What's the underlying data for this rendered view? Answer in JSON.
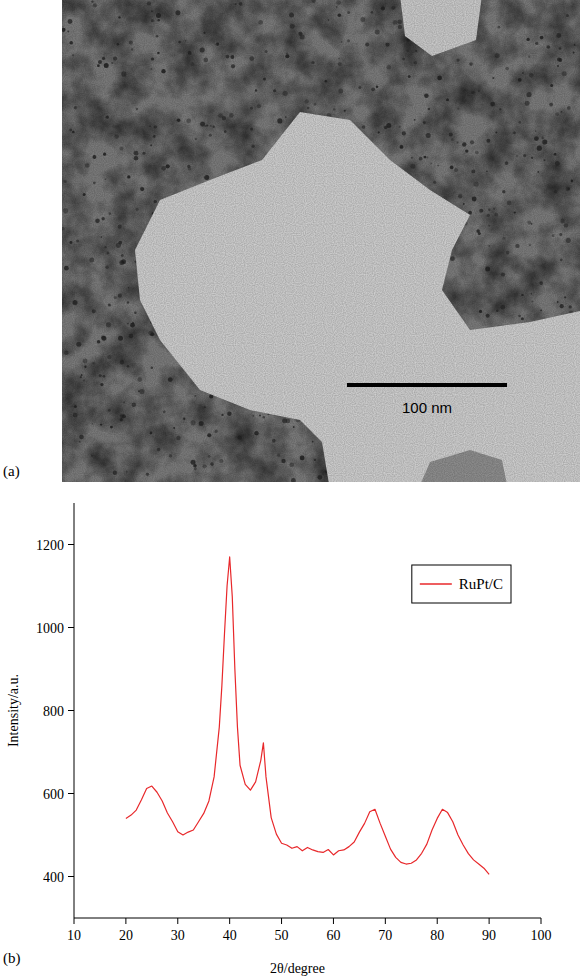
{
  "micrograph": {
    "panel_label": "(a)",
    "scale_bar": "100 nm"
  },
  "chart_data": {
    "type": "line",
    "panel_label": "(b)",
    "x_label": "2θ/degree",
    "y_label": "Intensity/a.u.",
    "xlim": [
      10,
      100
    ],
    "ylim": [
      300,
      1300
    ],
    "xticks": [
      10,
      20,
      30,
      40,
      50,
      60,
      70,
      80,
      90,
      100
    ],
    "yticks": [
      400,
      600,
      800,
      1000,
      1200
    ],
    "legend": "upper right",
    "x": [
      20,
      21,
      22,
      23,
      24,
      25,
      26,
      27,
      28,
      29,
      30,
      31,
      32,
      33,
      34,
      35,
      36,
      37,
      38,
      38.5,
      39,
      39.5,
      40,
      40.5,
      41,
      41.5,
      42,
      43,
      44,
      45,
      46,
      46.5,
      47,
      48,
      49,
      50,
      51,
      52,
      53,
      54,
      55,
      56,
      57,
      58,
      59,
      60,
      61,
      62,
      63,
      64,
      65,
      66,
      67,
      68,
      69,
      70,
      71,
      72,
      73,
      74,
      75,
      76,
      77,
      78,
      79,
      80,
      81,
      82,
      83,
      84,
      85,
      86,
      87,
      88,
      89,
      90
    ],
    "series": [
      {
        "name": "RuPt/C",
        "color": "#e8282b",
        "values": [
          540,
          548,
          560,
          585,
          612,
          618,
          603,
          582,
          553,
          532,
          508,
          500,
          507,
          512,
          532,
          552,
          582,
          640,
          760,
          860,
          985,
          1100,
          1170,
          1075,
          900,
          760,
          668,
          622,
          608,
          628,
          680,
          722,
          640,
          542,
          502,
          480,
          476,
          468,
          472,
          462,
          470,
          464,
          460,
          458,
          465,
          452,
          462,
          464,
          472,
          483,
          507,
          528,
          556,
          562,
          528,
          497,
          466,
          446,
          434,
          430,
          432,
          440,
          456,
          478,
          512,
          540,
          562,
          554,
          532,
          500,
          476,
          455,
          440,
          430,
          420,
          405
        ]
      }
    ]
  }
}
